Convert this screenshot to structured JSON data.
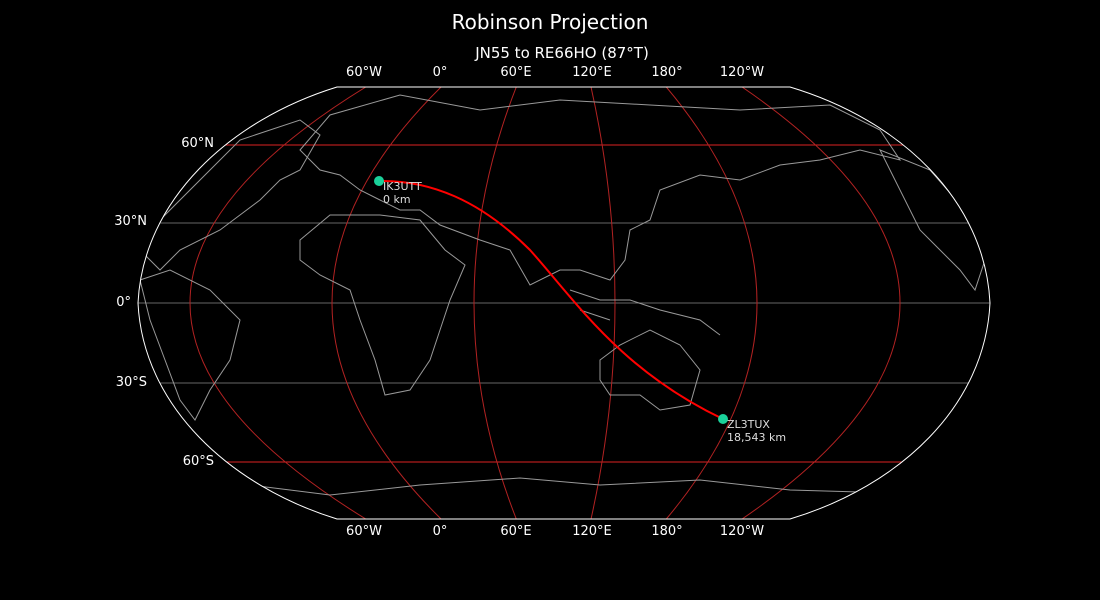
{
  "title": "Robinson Projection",
  "subtitle": "JN55 to RE66HO (87°T)",
  "lon_labels": [
    "60°W",
    "0°",
    "60°E",
    "120°E",
    "180°",
    "120°W"
  ],
  "lat_labels": [
    "60°N",
    "30°N",
    "0°",
    "30°S",
    "60°S"
  ],
  "stations": [
    {
      "call": "IK3UTT",
      "dist": "0 km",
      "grid": "JN55"
    },
    {
      "call": "ZL3TUX",
      "dist": "18,543 km",
      "grid": "RE66HO"
    }
  ],
  "colors": {
    "path": "#ff0000",
    "station": "#1ad19a",
    "meridian": "#b22222",
    "parallel": "#666666",
    "coast": "#999999",
    "outline": "#ffffff"
  }
}
